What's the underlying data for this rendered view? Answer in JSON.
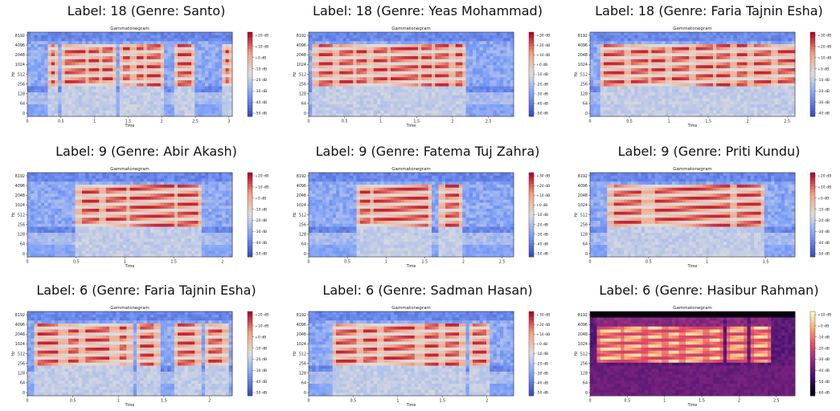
{
  "panels": [
    {
      "title": "Label: 18 (Genre: Santo)",
      "plot_title": "Gammatonegram",
      "xlabel": "Time",
      "ylabel": "Hz",
      "cmap": "coolwarm",
      "xticks": [
        "0",
        "0.5",
        "1",
        "1.5",
        "2",
        "2.5",
        "3"
      ],
      "xmax": 3.05,
      "cbar_ticks": [
        "+20 dB",
        "+10 dB",
        "+0 dB",
        "-10 dB",
        "-20 dB",
        "-30 dB",
        "-40 dB",
        "-50 dB"
      ],
      "syllables": [
        [
          0.35,
          0.42
        ],
        [
          0.55,
          0.85
        ],
        [
          0.9,
          1.05
        ],
        [
          1.12,
          1.25
        ],
        [
          1.4,
          1.55
        ],
        [
          1.62,
          1.75
        ],
        [
          1.8,
          2.0
        ],
        [
          2.25,
          2.45
        ],
        [
          2.95,
          3.02
        ]
      ]
    },
    {
      "title": "Label: 18 (Genre: Yeas Mohammad)",
      "plot_title": "Gammatonegram",
      "xlabel": "Time",
      "ylabel": "Hz",
      "cmap": "coolwarm",
      "xticks": [
        "0",
        "0.5",
        "1",
        "1.5",
        "2",
        "2.5"
      ],
      "xmax": 2.85,
      "cbar_ticks": [
        "+30 dB",
        "+20 dB",
        "+10 dB",
        "+0 dB",
        "-10 dB",
        "-20 dB",
        "-30 dB",
        "-40 dB",
        "-50 dB"
      ],
      "syllables": [
        [
          0.12,
          0.35
        ],
        [
          0.42,
          0.6
        ],
        [
          0.65,
          0.8
        ],
        [
          0.9,
          1.1
        ],
        [
          1.15,
          1.5
        ],
        [
          1.55,
          1.72
        ],
        [
          1.78,
          1.95
        ],
        [
          2.05,
          2.15
        ]
      ]
    },
    {
      "title": "Label: 18 (Genre: Faria Tajnin Esha)",
      "plot_title": "Gammatonegram",
      "xlabel": "Time",
      "ylabel": "Hz",
      "cmap": "coolwarm",
      "xticks": [
        "0",
        "0.5",
        "1",
        "1.5",
        "2",
        "2.5"
      ],
      "xmax": 2.6,
      "cbar_ticks": [
        "+30 dB",
        "+20 dB",
        "+10 dB",
        "+0 dB",
        "-10 dB",
        "-20 dB",
        "-30 dB",
        "-40 dB"
      ],
      "syllables": [
        [
          0.18,
          0.45
        ],
        [
          0.5,
          0.75
        ],
        [
          0.8,
          0.95
        ],
        [
          1.05,
          1.25
        ],
        [
          1.35,
          1.55
        ],
        [
          1.6,
          1.78
        ],
        [
          1.85,
          2.0
        ],
        [
          2.1,
          2.28
        ],
        [
          2.4,
          2.58
        ]
      ]
    },
    {
      "title": "Label: 9 (Genre: Abir Akash)",
      "plot_title": "Gammatonegram",
      "xlabel": "Time",
      "ylabel": "Hz",
      "cmap": "coolwarm",
      "xticks": [
        "0",
        "0.5",
        "1",
        "1.5",
        "2"
      ],
      "xmax": 2.1,
      "cbar_ticks": [
        "+20 dB",
        "+10 dB",
        "+0 dB",
        "-10 dB",
        "-20 dB",
        "-30 dB",
        "-40 dB",
        "-50 dB"
      ],
      "syllables": [
        [
          0.55,
          0.75
        ],
        [
          0.8,
          1.0
        ],
        [
          1.05,
          1.5
        ],
        [
          1.55,
          1.75
        ]
      ]
    },
    {
      "title": "Label: 9 (Genre: Fatema Tuj Zahra)",
      "plot_title": "Gammatonegram",
      "xlabel": "Time",
      "ylabel": "Hz",
      "cmap": "coolwarm",
      "xticks": [
        "0",
        "0.5",
        "1",
        "1.5",
        "2",
        "2.5"
      ],
      "xmax": 2.65,
      "cbar_ticks": [
        "+30 dB",
        "+20 dB",
        "+10 dB",
        "+0 dB",
        "-10 dB",
        "-20 dB",
        "-30 dB",
        "-40 dB",
        "-50 dB"
      ],
      "syllables": [
        [
          0.68,
          0.78
        ],
        [
          0.85,
          1.55
        ],
        [
          1.75,
          1.95
        ]
      ]
    },
    {
      "title": "Label: 9 (Genre: Priti Kundu)",
      "plot_title": "Gammatonegram",
      "xlabel": "Time",
      "ylabel": "Hz",
      "cmap": "coolwarm",
      "xticks": [
        "0",
        "0.5",
        "1",
        "1.5"
      ],
      "xmax": 1.75,
      "cbar_ticks": [
        "+20 dB",
        "+10 dB",
        "+0 dB",
        "-10 dB",
        "-20 dB",
        "-30 dB",
        "-40 dB",
        "-50 dB"
      ],
      "syllables": [
        [
          0.2,
          0.45
        ],
        [
          0.55,
          1.2
        ],
        [
          1.25,
          1.45
        ]
      ]
    },
    {
      "title": "Label: 6 (Genre: Faria Tajnin Esha)",
      "plot_title": "Gammatonegram",
      "xlabel": "Time",
      "ylabel": "Hz",
      "cmap": "coolwarm",
      "xticks": [
        "0",
        "0.5",
        "1",
        "1.5",
        "2"
      ],
      "xmax": 2.25,
      "cbar_ticks": [
        "+20 dB",
        "+10 dB",
        "+0 dB",
        "-10 dB",
        "-20 dB",
        "-30 dB",
        "-40 dB",
        "-50 dB"
      ],
      "syllables": [
        [
          0.12,
          0.35
        ],
        [
          0.45,
          0.55
        ],
        [
          0.65,
          0.9
        ],
        [
          1.0,
          1.1
        ],
        [
          1.25,
          1.4
        ],
        [
          1.65,
          1.85
        ],
        [
          2.0,
          2.15
        ]
      ]
    },
    {
      "title": "Label: 6 (Genre: Sadman Hasan)",
      "plot_title": "Gammatonegram",
      "xlabel": "Time",
      "ylabel": "Hz",
      "cmap": "coolwarm",
      "xticks": [
        "0",
        "0.5",
        "1",
        "1.5",
        "2"
      ],
      "xmax": 2.3,
      "cbar_ticks": [
        "+30 dB",
        "+20 dB",
        "+10 dB",
        "+0 dB",
        "-10 dB",
        "-20 dB",
        "-30 dB",
        "-40 dB",
        "-50 dB"
      ],
      "syllables": [
        [
          0.3,
          0.55
        ],
        [
          0.62,
          0.75
        ],
        [
          0.85,
          1.2
        ],
        [
          1.3,
          1.45
        ],
        [
          1.55,
          1.7
        ],
        [
          1.85,
          1.98
        ]
      ]
    },
    {
      "title": "Label: 6 (Genre: Hasibur Rahman)",
      "plot_title": "Gammatonegram",
      "xlabel": "Time",
      "ylabel": "Hz",
      "cmap": "magma",
      "xticks": [
        "0",
        "0.5",
        "1",
        "1.5",
        "2",
        "2.5"
      ],
      "xmax": 2.75,
      "cbar_ticks": [
        "+10 dB",
        "+0 dB",
        "-10 dB",
        "-20 dB",
        "-30 dB",
        "-40 dB",
        "-50 dB",
        "-60 dB"
      ],
      "syllables": [
        [
          0.15,
          0.4
        ],
        [
          0.45,
          0.7
        ],
        [
          0.8,
          0.95
        ],
        [
          1.05,
          1.2
        ],
        [
          1.3,
          1.5
        ],
        [
          1.6,
          1.75
        ],
        [
          1.9,
          2.05
        ],
        [
          2.2,
          2.4
        ]
      ]
    }
  ],
  "y_ticks": [
    "8192",
    "4096",
    "2048",
    "1024",
    "512",
    "256",
    "128",
    "64",
    "0"
  ],
  "chart_data": [
    {
      "type": "heatmap",
      "title": "Gammatonegram",
      "xlabel": "Time",
      "ylabel": "Hz",
      "xlim": [
        0,
        3.05
      ],
      "colorbar_range_db": [
        -50,
        20
      ]
    },
    {
      "type": "heatmap",
      "title": "Gammatonegram",
      "xlabel": "Time",
      "ylabel": "Hz",
      "xlim": [
        0,
        2.85
      ],
      "colorbar_range_db": [
        -50,
        30
      ]
    },
    {
      "type": "heatmap",
      "title": "Gammatonegram",
      "xlabel": "Time",
      "ylabel": "Hz",
      "xlim": [
        0,
        2.6
      ],
      "colorbar_range_db": [
        -40,
        30
      ]
    },
    {
      "type": "heatmap",
      "title": "Gammatonegram",
      "xlabel": "Time",
      "ylabel": "Hz",
      "xlim": [
        0,
        2.1
      ],
      "colorbar_range_db": [
        -50,
        20
      ]
    },
    {
      "type": "heatmap",
      "title": "Gammatonegram",
      "xlabel": "Time",
      "ylabel": "Hz",
      "xlim": [
        0,
        2.65
      ],
      "colorbar_range_db": [
        -50,
        30
      ]
    },
    {
      "type": "heatmap",
      "title": "Gammatonegram",
      "xlabel": "Time",
      "ylabel": "Hz",
      "xlim": [
        0,
        1.75
      ],
      "colorbar_range_db": [
        -50,
        20
      ]
    },
    {
      "type": "heatmap",
      "title": "Gammatonegram",
      "xlabel": "Time",
      "ylabel": "Hz",
      "xlim": [
        0,
        2.25
      ],
      "colorbar_range_db": [
        -50,
        20
      ]
    },
    {
      "type": "heatmap",
      "title": "Gammatonegram",
      "xlabel": "Time",
      "ylabel": "Hz",
      "xlim": [
        0,
        2.3
      ],
      "colorbar_range_db": [
        -50,
        30
      ]
    },
    {
      "type": "heatmap",
      "title": "Gammatonegram",
      "xlabel": "Time",
      "ylabel": "Hz",
      "xlim": [
        0,
        2.75
      ],
      "colorbar_range_db": [
        -60,
        10
      ]
    }
  ]
}
